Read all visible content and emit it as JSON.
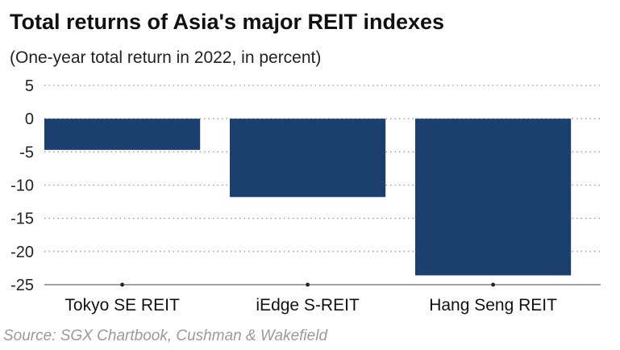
{
  "chart_data": {
    "type": "bar",
    "title": "Total returns of Asia's major REIT indexes",
    "subtitle": "(One-year total return in 2022, in percent)",
    "categories": [
      "Tokyo SE REIT",
      "iEdge S-REIT",
      "Hang Seng REIT"
    ],
    "values": [
      -4.7,
      -11.8,
      -23.6
    ],
    "ylim": [
      -25,
      5
    ],
    "yticks": [
      5,
      0,
      -5,
      -10,
      -15,
      -20,
      -25
    ],
    "grid": true,
    "bar_color": "#1b3f6e",
    "source": "Source: SGX Chartbook, Cushman & Wakefield"
  }
}
